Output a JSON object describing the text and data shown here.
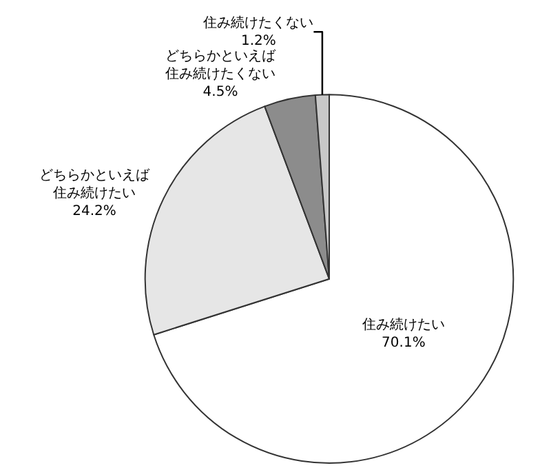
{
  "chart_data": {
    "type": "pie",
    "categories": [
      "住み続けたい",
      "どちらかといえば住み続けたい",
      "どちらかといえば住み続けたくない",
      "住み続けたくない"
    ],
    "values": [
      70.1,
      24.2,
      4.5,
      1.2
    ],
    "value_labels": [
      "70.1%",
      "24.2%",
      "4.5%",
      "1.2%"
    ],
    "colors": [
      "#ffffff",
      "#e6e6e6",
      "#8c8c8c",
      "#c8c8c8"
    ],
    "legend": false
  }
}
